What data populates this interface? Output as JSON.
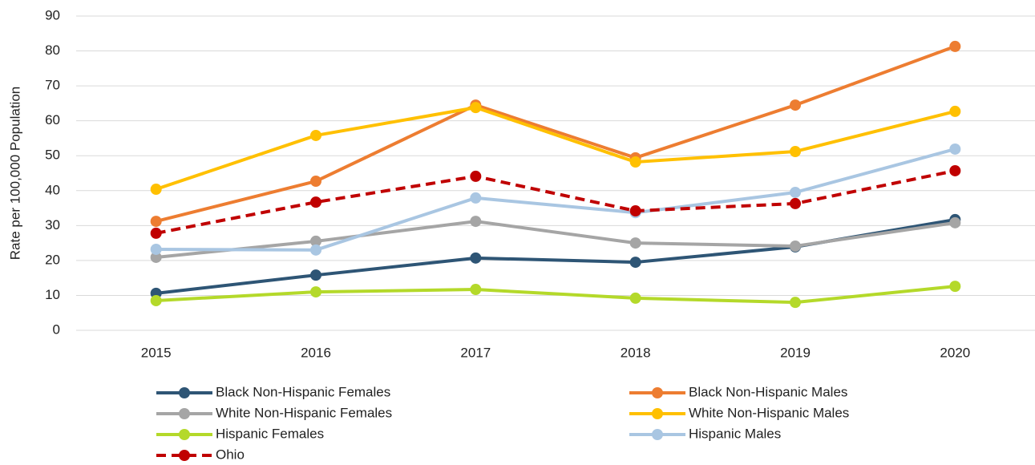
{
  "chart_data": {
    "type": "line",
    "y_label": "Rate per 100,000 Population",
    "categories": [
      "2015",
      "2016",
      "2017",
      "2018",
      "2019",
      "2020"
    ],
    "ylim": [
      0,
      90
    ],
    "yticks": [
      0,
      10,
      20,
      30,
      40,
      50,
      60,
      70,
      80,
      90
    ],
    "grid": true,
    "series": [
      {
        "name": "Black Non-Hispanic Females",
        "color": "#2e5575",
        "values": [
          10.6,
          15.8,
          20.7,
          19.5,
          23.9,
          31.7
        ]
      },
      {
        "name": "Black Non-Hispanic Males",
        "color": "#ed7d31",
        "values": [
          31.2,
          42.7,
          64.5,
          49.4,
          64.5,
          81.3
        ]
      },
      {
        "name": "White Non-Hispanic Females",
        "color": "#a5a5a5",
        "values": [
          20.9,
          25.5,
          31.2,
          25.0,
          24.1,
          30.8
        ]
      },
      {
        "name": "White Non-Hispanic Males",
        "color": "#ffc000",
        "values": [
          40.4,
          55.8,
          63.8,
          48.2,
          51.2,
          62.7
        ]
      },
      {
        "name": "Hispanic Females",
        "color": "#b4d92a",
        "values": [
          8.5,
          11.0,
          11.7,
          9.2,
          8.0,
          12.6
        ]
      },
      {
        "name": "Hispanic Males",
        "color": "#a9c6e2",
        "values": [
          23.2,
          23.0,
          37.9,
          33.7,
          39.5,
          51.9
        ]
      },
      {
        "name": "Ohio",
        "color": "#c00000",
        "dashed": true,
        "values": [
          27.8,
          36.7,
          44.1,
          34.2,
          36.3,
          45.7
        ]
      }
    ]
  }
}
